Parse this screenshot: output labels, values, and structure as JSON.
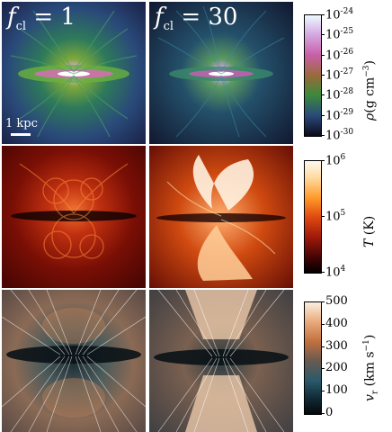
{
  "panels": {
    "col_labels": [
      {
        "var": "f",
        "sub": "cl",
        "rest": " = 1"
      },
      {
        "var": "f",
        "sub": "cl",
        "rest": " = 30"
      }
    ],
    "scale_bar": "1 kpc"
  },
  "colorbars": {
    "density": {
      "symbol": "ρ",
      "unit_text": "(g cm",
      "unit_exp": "−3",
      "unit_close": ")",
      "ticks": [
        {
          "base": "10",
          "exp": "-24"
        },
        {
          "base": "10",
          "exp": "-25"
        },
        {
          "base": "10",
          "exp": "-26"
        },
        {
          "base": "10",
          "exp": "-27"
        },
        {
          "base": "10",
          "exp": "-28"
        },
        {
          "base": "10",
          "exp": "-29"
        },
        {
          "base": "10",
          "exp": "-30"
        }
      ],
      "colors": [
        "#ecfbff",
        "#d4a8e0",
        "#c85fa8",
        "#7a7a2a",
        "#3c8a3c",
        "#2a4a7a",
        "#0a0a1a"
      ]
    },
    "temperature": {
      "symbol": "T",
      "unit_text": " (K)",
      "ticks": [
        {
          "base": "10",
          "exp": "6"
        },
        {
          "base": "10",
          "exp": "5"
        },
        {
          "base": "10",
          "exp": "4"
        }
      ],
      "colors": [
        "#fffaf0",
        "#ffd9a0",
        "#ff9a2a",
        "#e04a10",
        "#a01a0a",
        "#4a0505",
        "#000000"
      ]
    },
    "velocity": {
      "symbol": "v",
      "sub": "r",
      "unit_text": " (km s",
      "unit_exp": "−1",
      "unit_close": ")",
      "ticks": [
        "500",
        "400",
        "300",
        "200",
        "100",
        "0"
      ],
      "colors": [
        "#fbeee0",
        "#e8a87a",
        "#c2703f",
        "#6a5a50",
        "#2a5a6a",
        "#102a35",
        "#05080a"
      ]
    }
  }
}
